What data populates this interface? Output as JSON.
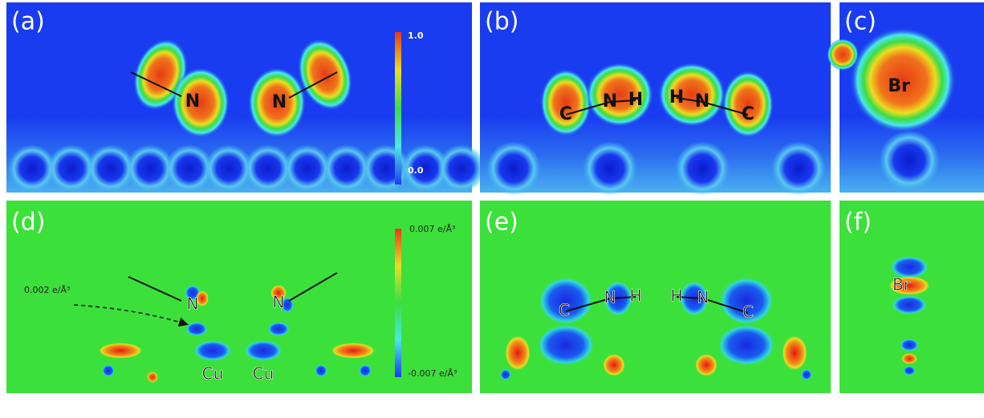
{
  "panels": [
    {
      "label": "(a)",
      "atoms": [
        "N",
        "N"
      ],
      "colorbar": {
        "max": "1.0",
        "min": "0.0"
      }
    },
    {
      "label": "(b)",
      "atoms": [
        "C",
        "N",
        "H",
        "H",
        "N",
        "C"
      ]
    },
    {
      "label": "(c)",
      "atoms": [
        "Br"
      ]
    },
    {
      "label": "(d)",
      "atoms": [
        "N",
        "N",
        "Cu",
        "Cu"
      ],
      "colorbar": {
        "max": "0.007 e/Å³",
        "min": "-0.007 e/Å³"
      },
      "annotation": "0.002 e/Å³"
    },
    {
      "label": "(e)",
      "atoms": [
        "C",
        "N",
        "H",
        "H",
        "N",
        "C"
      ]
    },
    {
      "label": "(f)",
      "atoms": [
        "Br"
      ]
    }
  ]
}
